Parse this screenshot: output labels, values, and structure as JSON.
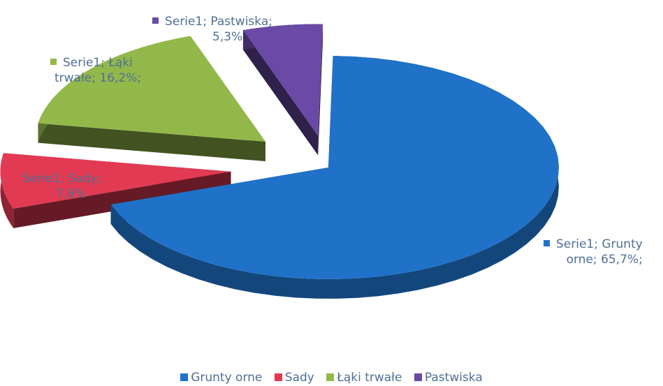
{
  "chart_data": {
    "type": "pie",
    "style": "3d-exploded",
    "series_name": "Serie1",
    "categories": [
      "Grunty orne",
      "Sady",
      "Łąki trwałe",
      "Pastwiska"
    ],
    "values": [
      65.7,
      7.6,
      16.2,
      5.3
    ],
    "value_labels": [
      "65,7%",
      "7,6%",
      "16,2%",
      "5,3%"
    ],
    "colors": [
      "#1f72c8",
      "#e23a52",
      "#93b84a",
      "#6a4aa6"
    ],
    "data_labels": [
      {
        "line1": "Serie1; Grunty",
        "line2": "orne; 65,7%;"
      },
      {
        "line1": "Serie1; Sady;",
        "line2": "7,6%"
      },
      {
        "line1": "Serie1; Łąki",
        "line2": "trwałe; 16,2%;"
      },
      {
        "line1": "Serie1; Pastwiska;",
        "line2": "5,3%"
      }
    ],
    "legend_position": "bottom"
  }
}
